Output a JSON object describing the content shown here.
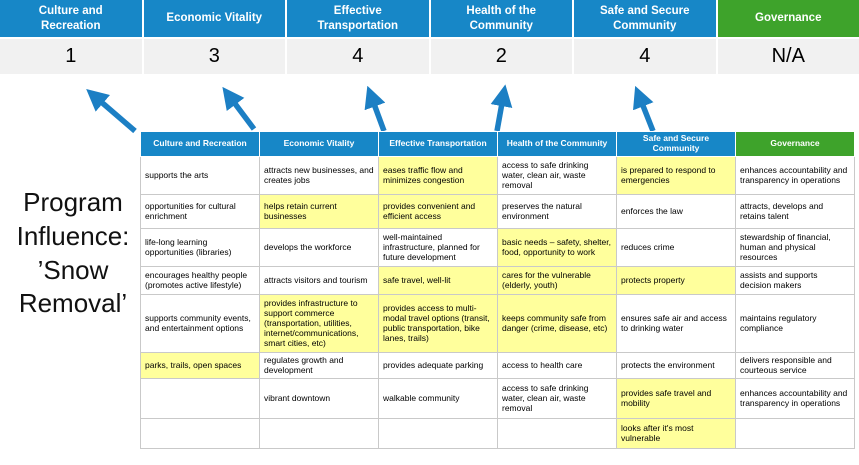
{
  "title": "Program Influence: ’Snow Removal’",
  "colors": {
    "header_blue": "#1787c7",
    "header_green": "#3ea32b",
    "highlight_yellow": "#ffff9c",
    "score_band_gray": "#f1f1f1",
    "arrow_blue": "#1c7fc4"
  },
  "summary": {
    "columns": [
      {
        "label": "Culture and Recreation",
        "score": "1",
        "theme": "blue"
      },
      {
        "label": "Economic Vitality",
        "score": "3",
        "theme": "blue"
      },
      {
        "label": "Effective Transportation",
        "score": "4",
        "theme": "blue"
      },
      {
        "label": "Health of the Community",
        "score": "2",
        "theme": "blue"
      },
      {
        "label": "Safe and Secure Community",
        "score": "4",
        "theme": "blue"
      },
      {
        "label": "Governance",
        "score": "N/A",
        "theme": "green"
      }
    ]
  },
  "table": {
    "headers": [
      {
        "label": "Culture and Recreation",
        "theme": "blue"
      },
      {
        "label": "Economic Vitality",
        "theme": "blue"
      },
      {
        "label": "Effective Transportation",
        "theme": "blue"
      },
      {
        "label": "Health of the Community",
        "theme": "blue"
      },
      {
        "label": "Safe and Secure Community",
        "theme": "blue"
      },
      {
        "label": "Governance",
        "theme": "green"
      }
    ],
    "rows": [
      [
        {
          "text": "supports the arts",
          "highlighted": false
        },
        {
          "text": "attracts new businesses, and creates jobs",
          "highlighted": false
        },
        {
          "text": "eases traffic flow and minimizes congestion",
          "highlighted": true
        },
        {
          "text": "access to safe drinking water, clean air, waste removal",
          "highlighted": false
        },
        {
          "text": "is prepared to respond to emergencies",
          "highlighted": true
        },
        {
          "text": "enhances accountability and transparency in operations",
          "highlighted": false
        }
      ],
      [
        {
          "text": "opportunities for cultural enrichment",
          "highlighted": false
        },
        {
          "text": "helps retain current businesses",
          "highlighted": true
        },
        {
          "text": "provides convenient and efficient access",
          "highlighted": true
        },
        {
          "text": "preserves the natural environment",
          "highlighted": false
        },
        {
          "text": "enforces the law",
          "highlighted": false
        },
        {
          "text": "attracts, develops and retains talent",
          "highlighted": false
        }
      ],
      [
        {
          "text": "life-long learning opportunities (libraries)",
          "highlighted": false
        },
        {
          "text": "develops the workforce",
          "highlighted": false
        },
        {
          "text": "well-maintained infrastructure, planned for future development",
          "highlighted": false
        },
        {
          "text": "basic needs – safety, shelter, food, opportunity to work",
          "highlighted": true
        },
        {
          "text": "reduces crime",
          "highlighted": false
        },
        {
          "text": "stewardship of financial, human and physical resources",
          "highlighted": false
        }
      ],
      [
        {
          "text": "encourages healthy people (promotes active lifestyle)",
          "highlighted": false
        },
        {
          "text": "attracts visitors and tourism",
          "highlighted": false
        },
        {
          "text": "safe travel, well-lit",
          "highlighted": true
        },
        {
          "text": "cares for the vulnerable (elderly, youth)",
          "highlighted": true
        },
        {
          "text": "protects property",
          "highlighted": true
        },
        {
          "text": "assists and supports decision makers",
          "highlighted": false
        }
      ],
      [
        {
          "text": "supports community events, and entertainment options",
          "highlighted": false
        },
        {
          "text": "provides infrastructure to support commerce (transportation, utilities, internet/communications, smart cities, etc)",
          "highlighted": true
        },
        {
          "text": "provides access to multi-modal travel options (transit, public transportation, bike lanes, trails)",
          "highlighted": true
        },
        {
          "text": "keeps community safe from danger (crime, disease, etc)",
          "highlighted": true
        },
        {
          "text": "ensures safe air and access to drinking water",
          "highlighted": false
        },
        {
          "text": "maintains regulatory compliance",
          "highlighted": false
        }
      ],
      [
        {
          "text": "parks, trails, open spaces",
          "highlighted": true
        },
        {
          "text": "regulates growth and development",
          "highlighted": false
        },
        {
          "text": "provides adequate parking",
          "highlighted": false
        },
        {
          "text": "access to health care",
          "highlighted": false
        },
        {
          "text": "protects the environment",
          "highlighted": false
        },
        {
          "text": "delivers responsible and courteous service",
          "highlighted": false
        }
      ],
      [
        {
          "text": "",
          "highlighted": false
        },
        {
          "text": "vibrant downtown",
          "highlighted": false
        },
        {
          "text": "walkable community",
          "highlighted": false
        },
        {
          "text": "access to safe drinking water, clean air, waste removal",
          "highlighted": false
        },
        {
          "text": "provides safe travel and mobility",
          "highlighted": true
        },
        {
          "text": "enhances accountability and transparency in operations",
          "highlighted": false
        }
      ],
      [
        {
          "text": "",
          "highlighted": false
        },
        {
          "text": "",
          "highlighted": false
        },
        {
          "text": "",
          "highlighted": false
        },
        {
          "text": "",
          "highlighted": false
        },
        {
          "text": "looks after it's most vulnerable",
          "highlighted": true
        },
        {
          "text": "",
          "highlighted": false
        }
      ]
    ]
  }
}
